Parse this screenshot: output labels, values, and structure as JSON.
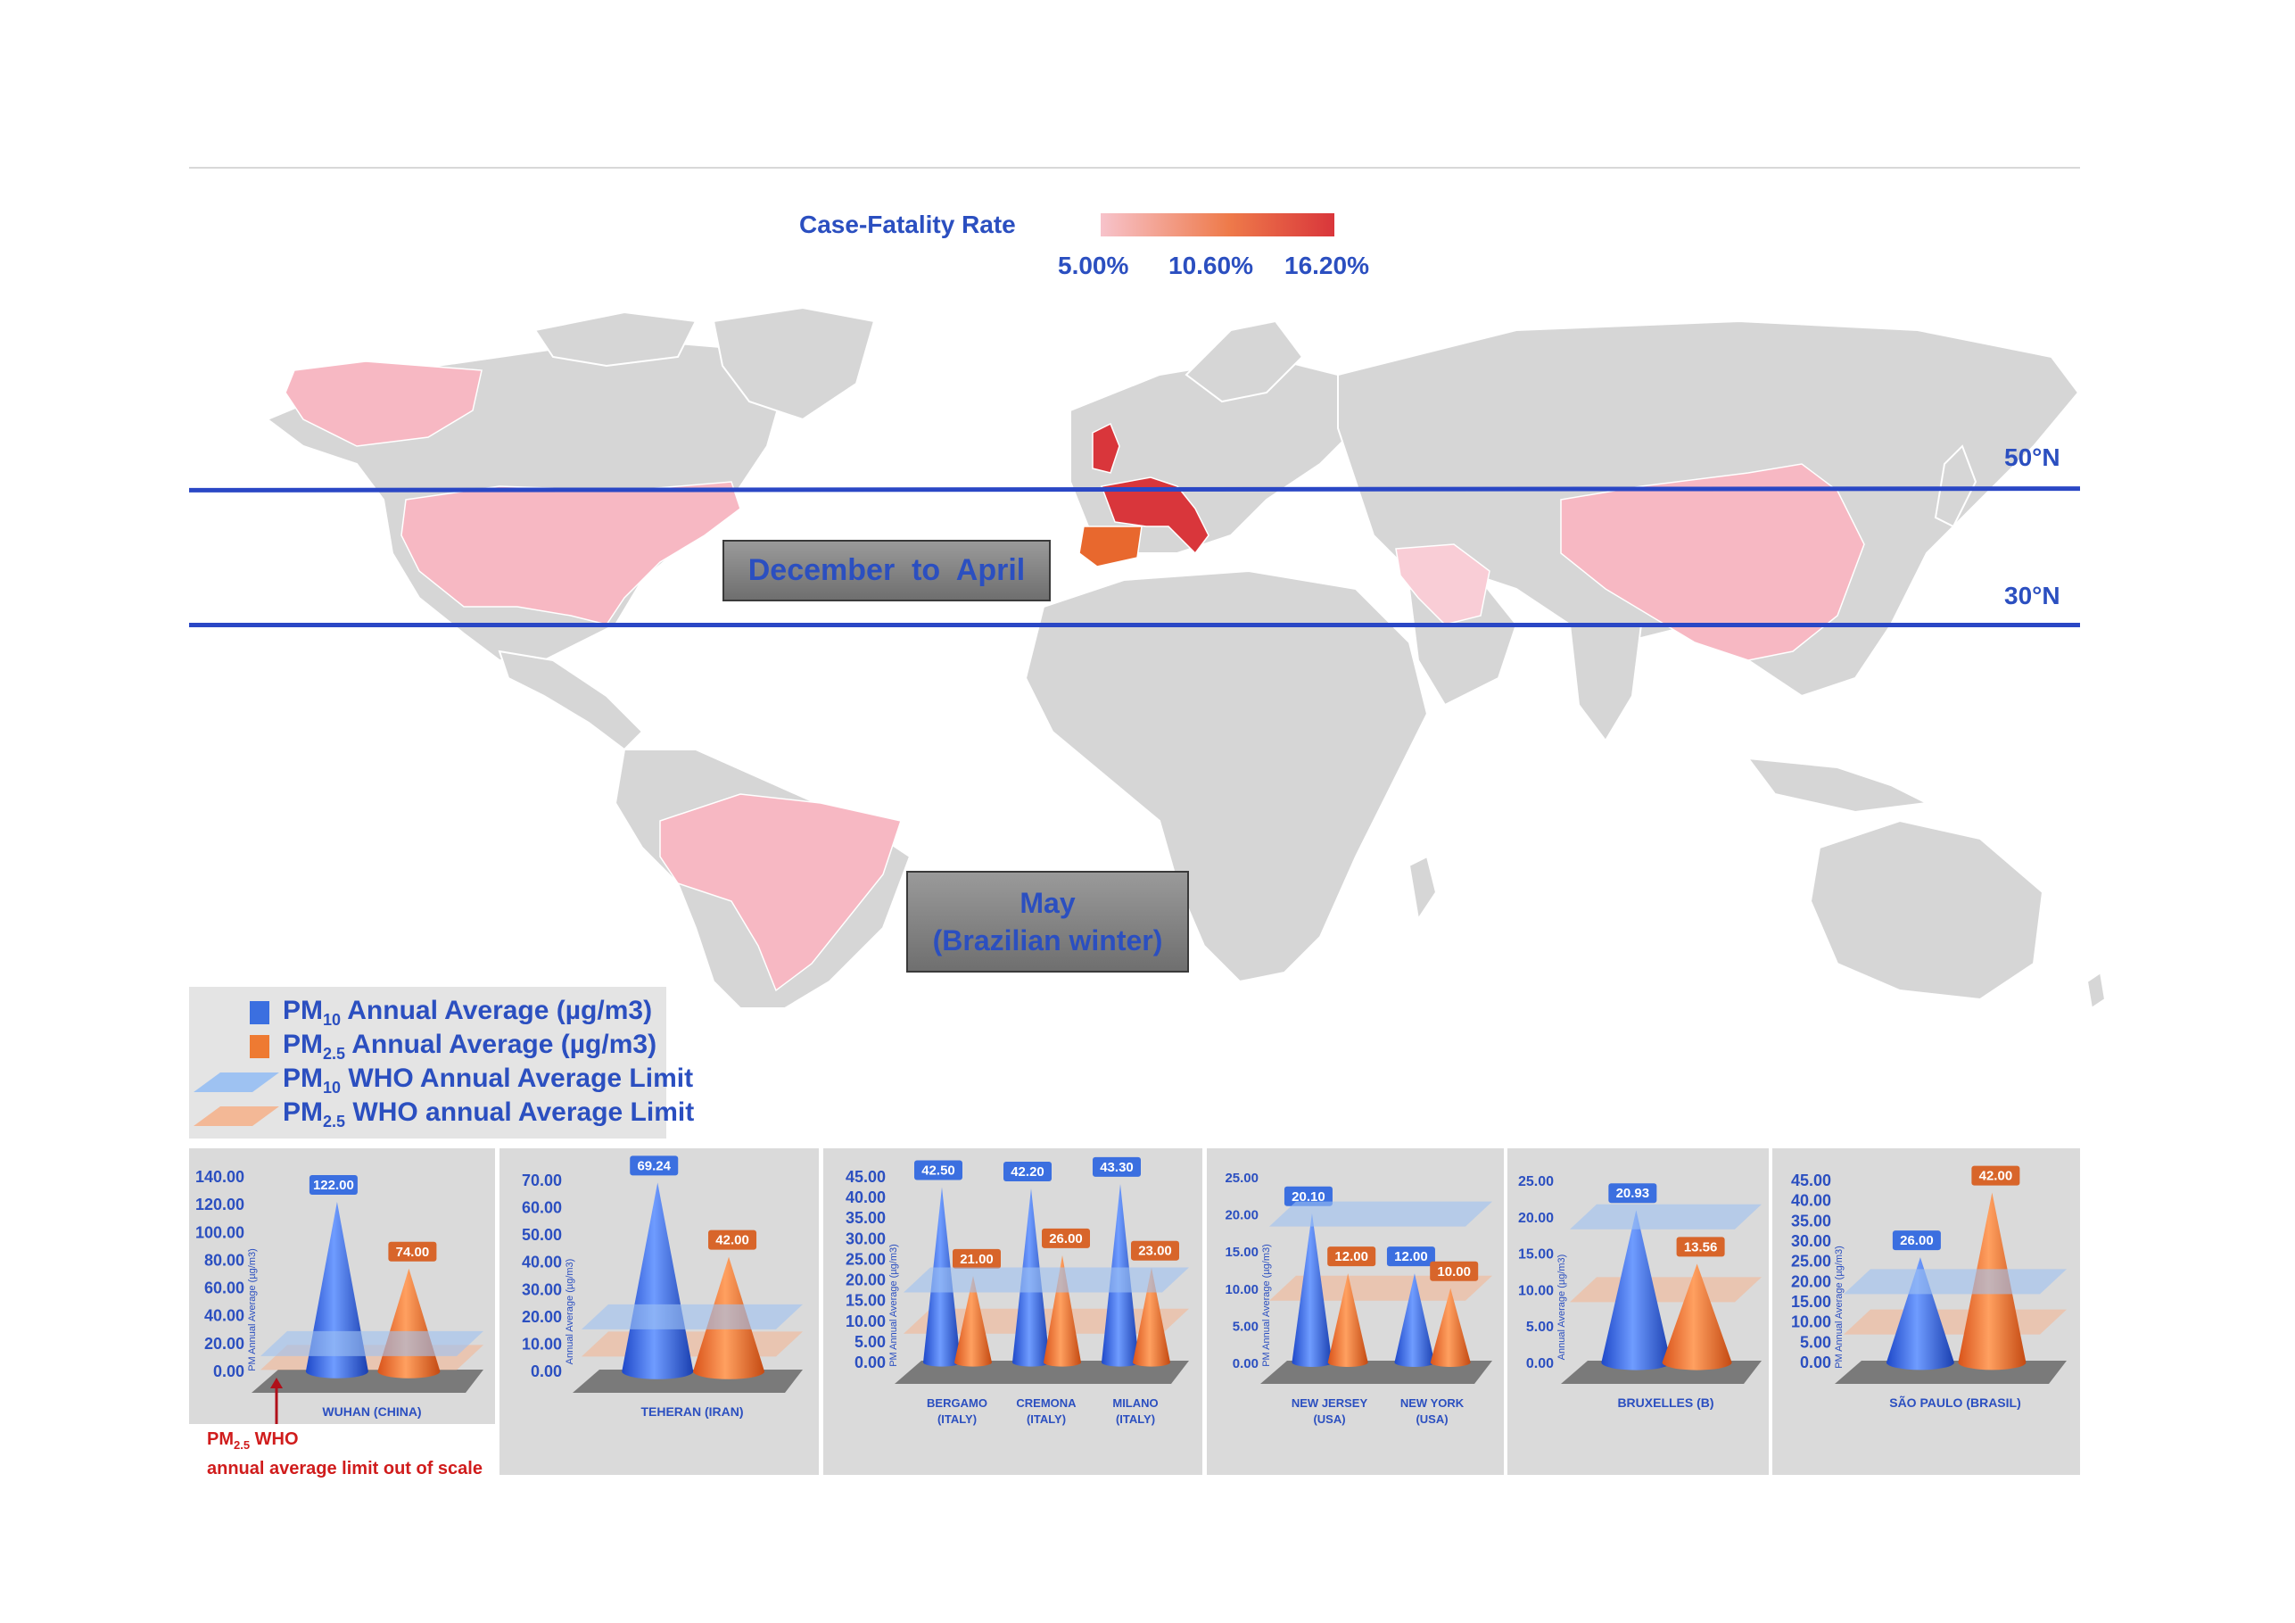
{
  "legend": {
    "title": "Case-Fatality Rate",
    "scale_labels": [
      "5.00%",
      "10.60%",
      "16.20%"
    ],
    "colors": [
      "#f7c3cb",
      "#ee7a4a",
      "#d9363b"
    ]
  },
  "latitudes": [
    "50°N",
    "30°N"
  ],
  "seasons": {
    "north": "December  to  April",
    "south_line1": "May",
    "south_line2": "(Brazilian winter)"
  },
  "pm_legend": {
    "pm10_avg": "Annual Average (µg/m3)",
    "pm25_avg": "Annual Average (µg/m3)",
    "pm10_limit": "WHO Annual Average Limit",
    "pm25_limit": "WHO annual Average Limit",
    "pm10_prefix": "PM",
    "pm10_sub": "10",
    "pm25_prefix": "PM",
    "pm25_sub": "2.5",
    "colors": {
      "pm10": "#3b6fe0",
      "pm25": "#ee7a32",
      "pm10_limit": "#9ec2f2",
      "pm25_limit": "#f3b896"
    }
  },
  "red_note": {
    "prefix": "PM",
    "sub": "2.5",
    "line1_rest": " WHO",
    "line2": "annual average limit out of scale"
  },
  "map_highlights": [
    {
      "region": "Alaska / USA",
      "shade": "#f7b8c3"
    },
    {
      "region": "United States",
      "shade": "#f7b8c3"
    },
    {
      "region": "Brazil",
      "shade": "#f7b8c3"
    },
    {
      "region": "United Kingdom",
      "shade": "#d9363b"
    },
    {
      "region": "France / Belgium / Italy",
      "shade": "#d9363b"
    },
    {
      "region": "Spain",
      "shade": "#e8682e"
    },
    {
      "region": "Iran",
      "shade": "#f9cdd6"
    },
    {
      "region": "China",
      "shade": "#f7b8c3"
    }
  ],
  "chart_data": [
    {
      "type": "bar",
      "shape": "cone",
      "ylabel": "PM Annual Average (µg/m3)",
      "ylim": [
        0,
        140
      ],
      "yticks": [
        "0.00",
        "20.00",
        "40.00",
        "60.00",
        "80.00",
        "100.00",
        "120.00",
        "140.00"
      ],
      "categories": [
        "WUHAN (CHINA)"
      ],
      "series": [
        {
          "name": "PM10",
          "values": [
            122.0
          ],
          "labels": [
            "122.00"
          ]
        },
        {
          "name": "PM2.5",
          "values": [
            74.0
          ],
          "labels": [
            "74.00"
          ]
        }
      ],
      "who_limits": {
        "pm10": 20,
        "pm25": 10
      }
    },
    {
      "type": "bar",
      "shape": "cone",
      "ylabel": "Annual Average (µg/m3)",
      "ylim": [
        0,
        70
      ],
      "yticks": [
        "0.00",
        "10.00",
        "20.00",
        "30.00",
        "40.00",
        "50.00",
        "60.00",
        "70.00"
      ],
      "categories": [
        "TEHERAN  (IRAN)"
      ],
      "series": [
        {
          "name": "PM10",
          "values": [
            69.24
          ],
          "labels": [
            "69.24"
          ]
        },
        {
          "name": "PM2.5",
          "values": [
            42.0
          ],
          "labels": [
            "42.00"
          ]
        }
      ],
      "who_limits": {
        "pm10": 20,
        "pm25": 10
      }
    },
    {
      "type": "bar",
      "shape": "cone",
      "ylabel": "PM Annual Average (µg/m3)",
      "ylim": [
        0,
        45
      ],
      "yticks": [
        "0.00",
        "5.00",
        "10.00",
        "15.00",
        "20.00",
        "25.00",
        "30.00",
        "35.00",
        "40.00",
        "45.00"
      ],
      "categories": [
        "BERGAMO|(ITALY)",
        "CREMONA|(ITALY)",
        "MILANO|(ITALY)"
      ],
      "series": [
        {
          "name": "PM10",
          "values": [
            42.5,
            42.2,
            43.3
          ],
          "labels": [
            "42.50",
            "42.20",
            "43.30"
          ]
        },
        {
          "name": "PM2.5",
          "values": [
            21.0,
            26.0,
            23.0
          ],
          "labels": [
            "21.00",
            "26.00",
            "23.00"
          ]
        }
      ],
      "who_limits": {
        "pm10": 20,
        "pm25": 10
      }
    },
    {
      "type": "bar",
      "shape": "cone",
      "ylabel": "PM Annual Average (µg/m3)",
      "ylim": [
        0,
        25
      ],
      "yticks": [
        "0.00",
        "5.00",
        "10.00",
        "15.00",
        "20.00",
        "25.00"
      ],
      "categories": [
        "NEW JERSEY|(USA)",
        "NEW YORK|(USA)"
      ],
      "series": [
        {
          "name": "PM10",
          "values": [
            20.1,
            12.0
          ],
          "labels": [
            "20.10",
            "12.00"
          ]
        },
        {
          "name": "PM2.5",
          "values": [
            12.0,
            10.0
          ],
          "labels": [
            "12.00",
            "10.00"
          ]
        }
      ],
      "who_limits": {
        "pm10": 20,
        "pm25": 10
      }
    },
    {
      "type": "bar",
      "shape": "cone",
      "ylabel": "Annual Average (µg/m3)",
      "ylim": [
        0,
        25
      ],
      "yticks": [
        "0.00",
        "5.00",
        "10.00",
        "15.00",
        "20.00",
        "25.00"
      ],
      "categories": [
        "BRUXELLES (B)"
      ],
      "series": [
        {
          "name": "PM10",
          "values": [
            20.93
          ],
          "labels": [
            "20.93"
          ]
        },
        {
          "name": "PM2.5",
          "values": [
            13.56
          ],
          "labels": [
            "13.56"
          ]
        }
      ],
      "who_limits": {
        "pm10": 20,
        "pm25": 10
      }
    },
    {
      "type": "bar",
      "shape": "cone",
      "ylabel": "PM Annual Average (µg/m3)",
      "ylim": [
        0,
        45
      ],
      "yticks": [
        "0.00",
        "5.00",
        "10.00",
        "15.00",
        "20.00",
        "25.00",
        "30.00",
        "35.00",
        "40.00",
        "45.00"
      ],
      "categories": [
        "SÃO PAULO (BRASIL)"
      ],
      "series": [
        {
          "name": "PM10",
          "values": [
            26.0
          ],
          "labels": [
            "26.00"
          ]
        },
        {
          "name": "PM2.5",
          "values": [
            42.0
          ],
          "labels": [
            "42.00"
          ]
        }
      ],
      "who_limits": {
        "pm10": 20,
        "pm25": 10
      }
    }
  ]
}
